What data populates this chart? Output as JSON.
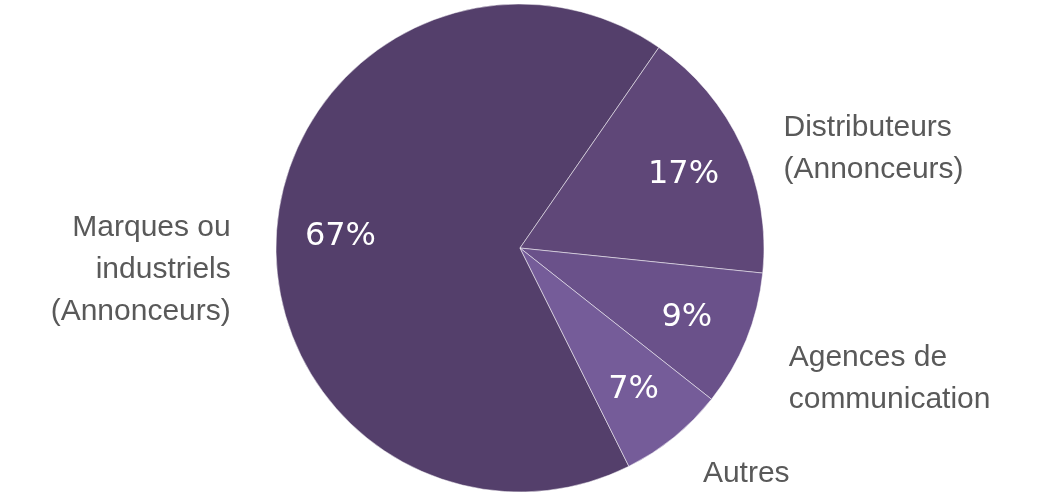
{
  "chart_data": {
    "type": "pie",
    "categories": [
      "Marques ou industriels (Annonceurs)",
      "Distributeurs (Annonceurs)",
      "Agences de communication",
      "Autres"
    ],
    "values": [
      67,
      17,
      9,
      7
    ],
    "colors": [
      "#543f6b",
      "#5f4778",
      "#6a518a",
      "#755c99"
    ],
    "value_labels": [
      "67%",
      "17%",
      "9%",
      "7%"
    ]
  }
}
